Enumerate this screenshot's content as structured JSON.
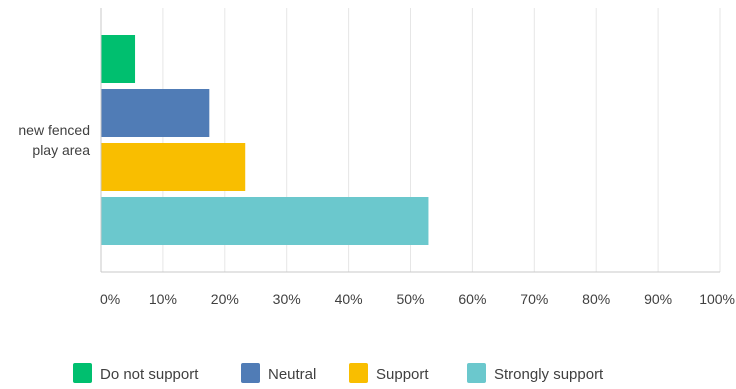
{
  "chart_data": {
    "type": "bar",
    "orientation": "horizontal",
    "categories": [
      "new fenced play area"
    ],
    "category_label_lines": [
      "new fenced",
      "play area"
    ],
    "series": [
      {
        "name": "Do not support",
        "values": [
          5.5
        ],
        "color": "#00BF6F"
      },
      {
        "name": "Neutral",
        "values": [
          17.5
        ],
        "color": "#507CB6"
      },
      {
        "name": "Support",
        "values": [
          23.3
        ],
        "color": "#F9BE00"
      },
      {
        "name": "Strongly support",
        "values": [
          52.9
        ],
        "color": "#6BC8CD"
      }
    ],
    "x_ticks": [
      "0%",
      "10%",
      "20%",
      "30%",
      "40%",
      "50%",
      "60%",
      "70%",
      "80%",
      "90%",
      "100%"
    ],
    "x_tick_values": [
      0,
      10,
      20,
      30,
      40,
      50,
      60,
      70,
      80,
      90,
      100
    ],
    "xlim": [
      0,
      100
    ],
    "grid": true,
    "legend_position": "bottom"
  }
}
